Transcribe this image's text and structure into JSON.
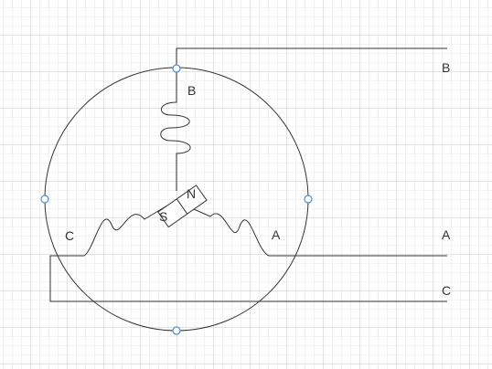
{
  "diagram": {
    "winding_labels": {
      "b": "B",
      "c": "C",
      "a": "A"
    },
    "line_labels": {
      "b": "B",
      "a": "A",
      "c": "C"
    },
    "magnet": {
      "north": "N",
      "south": "S"
    },
    "colors": {
      "stroke": "#333333",
      "handle_stroke": "#4a8fd4",
      "handle_fill": "#ffffff"
    }
  }
}
